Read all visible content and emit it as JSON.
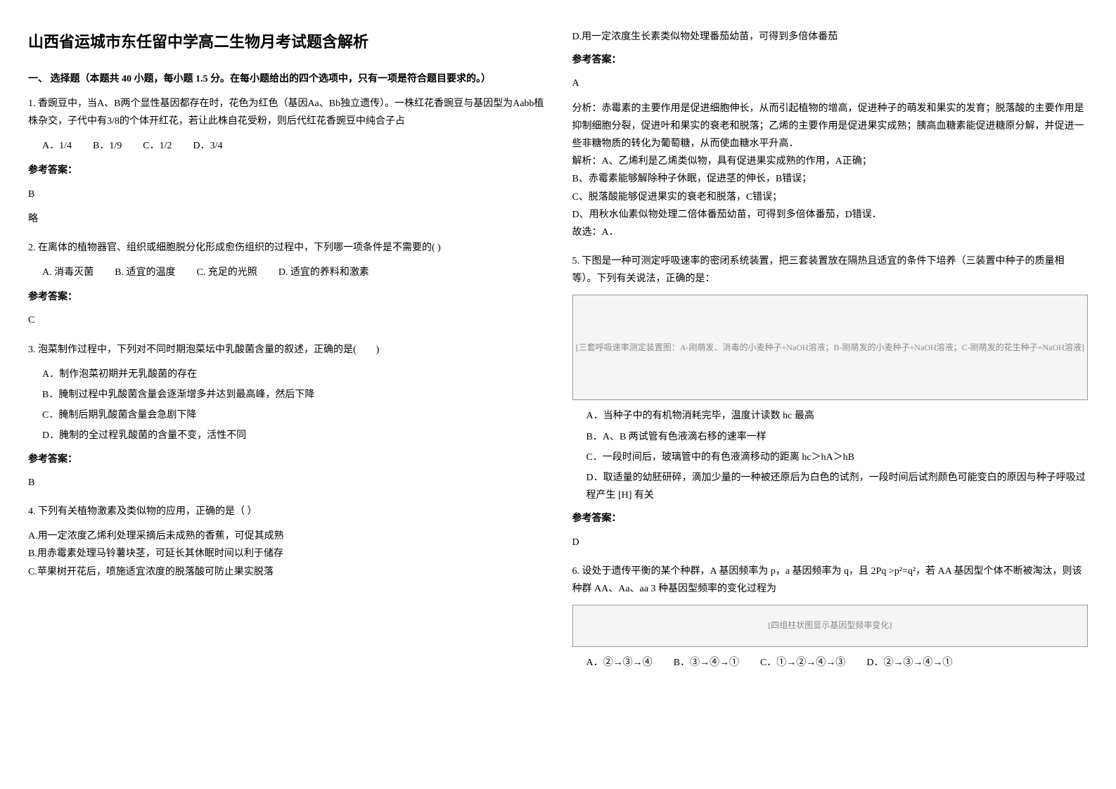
{
  "title": "山西省运城市东任留中学高二生物月考试题含解析",
  "section_header": "一、 选择题（本题共 40 小题，每小题 1.5 分。在每小题给出的四个选项中，只有一项是符合题目要求的。）",
  "answer_label": "参考答案：",
  "q1": {
    "text": "1. 香豌豆中，当A、B两个显性基因都存在时，花色为红色（基因Aa、Bb独立遗传）。一株红花香豌豆与基因型为Aabb植株杂交，子代中有3/8的个体开红花，若让此株自花受粉，则后代红花香豌豆中纯合子占",
    "options": {
      "A": "A．1/4",
      "B": "B．1/9",
      "C": "C．1/2",
      "D": "D．3/4"
    },
    "answer": "B",
    "note": "略"
  },
  "q2": {
    "text": "2. 在离体的植物器官、组织或细胞脱分化形成愈伤组织的过程中，下列哪一项条件是不需要的(    )",
    "options": {
      "A": "A. 消毒灭菌",
      "B": "B. 适宜的温度",
      "C": "C. 充足的光照",
      "D": "D. 适宜的养料和激素"
    },
    "answer": "C"
  },
  "q3": {
    "text": "3. 泡菜制作过程中，下列对不同时期泡菜坛中乳酸菌含量的叙述，正确的是(　　)",
    "options": {
      "A": "A．制作泡菜初期并无乳酸菌的存在",
      "B": "B．腌制过程中乳酸菌含量会逐渐增多并达到最高峰，然后下降",
      "C": "C．腌制后期乳酸菌含量会急剧下降",
      "D": "D．腌制的全过程乳酸菌的含量不变，活性不同"
    },
    "answer": "B"
  },
  "q4": {
    "text": "4. 下列有关植物激素及类似物的应用，正确的是（ ）",
    "options": {
      "A": "A.用一定浓度乙烯利处理采摘后未成熟的香蕉，可促其成熟",
      "B": "B.用赤霉素处理马铃薯块茎，可延长其休眠时间以利于储存",
      "C": "C.苹果树开花后，喷施适宜浓度的脱落酸可防止果实脱落",
      "D": "D.用一定浓度生长素类似物处理番茄幼苗，可得到多倍体番茄"
    },
    "answer": "A",
    "analysis_label": "分析：",
    "analysis": "赤霉素的主要作用是促进细胞伸长，从而引起植物的增高，促进种子的萌发和果实的发育；脱落酸的主要作用是抑制细胞分裂，促进叶和果实的衰老和脱落；乙烯的主要作用是促进果实成熟；胰高血糖素能促进糖原分解，并促进一些非糖物质的转化为葡萄糖，从而使血糖水平升高．",
    "explanation_label": "解析：",
    "explanation_A": "A、乙烯利是乙烯类似物，具有促进果实成熟的作用，A正确；",
    "explanation_B": "B、赤霉素能够解除种子休眠，促进茎的伸长，B错误；",
    "explanation_C": "C、脱落酸能够促进果实的衰老和脱落，C错误；",
    "explanation_D": "D、用秋水仙素似物处理二倍体番茄幼苗，可得到多倍体番茄，D错误．",
    "conclusion": "故选：A．"
  },
  "q5": {
    "text": "5. 下图是一种可测定呼吸速率的密闭系统装置，把三套装置放在隔热且适宜的条件下培养（三装置中种子的质量相等）。下列有关说法，正确的是：",
    "diagram_label": "[三套呼吸速率测定装置图：A-刚萌发、消毒的小麦种子+NaOH溶液；B-刚萌发的小麦种子+NaOH溶液；C-刚萌发的花生种子+NaOH溶液]",
    "options": {
      "A": "A．当种子中的有机物消耗完毕，温度计读数 hc 最高",
      "B": "B．A、B 两试管有色液滴右移的速率一样",
      "C": "C．一段时间后，玻璃管中的有色液滴移动的距离 hc＞hA＞hB",
      "D": "D．取适量的幼胚研碎，滴加少量的一种被还原后为白色的试剂，一段时间后试剂颜色可能变白的原因与种子呼吸过程产生 [H] 有关"
    },
    "answer": "D"
  },
  "q6": {
    "text": "6. 设处于遗传平衡的某个种群，A 基因频率为 p，a 基因频率为 q，且 2Pq >p²=q²，若 AA 基因型个体不断被淘汰，则该种群 AA、Aa、aa 3 种基因型频率的变化过程为",
    "diagram_label": "[四组柱状图显示基因型频率变化]",
    "options": {
      "A": "A．②→③→④",
      "B": "B．③→④→①",
      "C": "C．①→②→④→③",
      "D": "D．②→③→④→①"
    }
  }
}
